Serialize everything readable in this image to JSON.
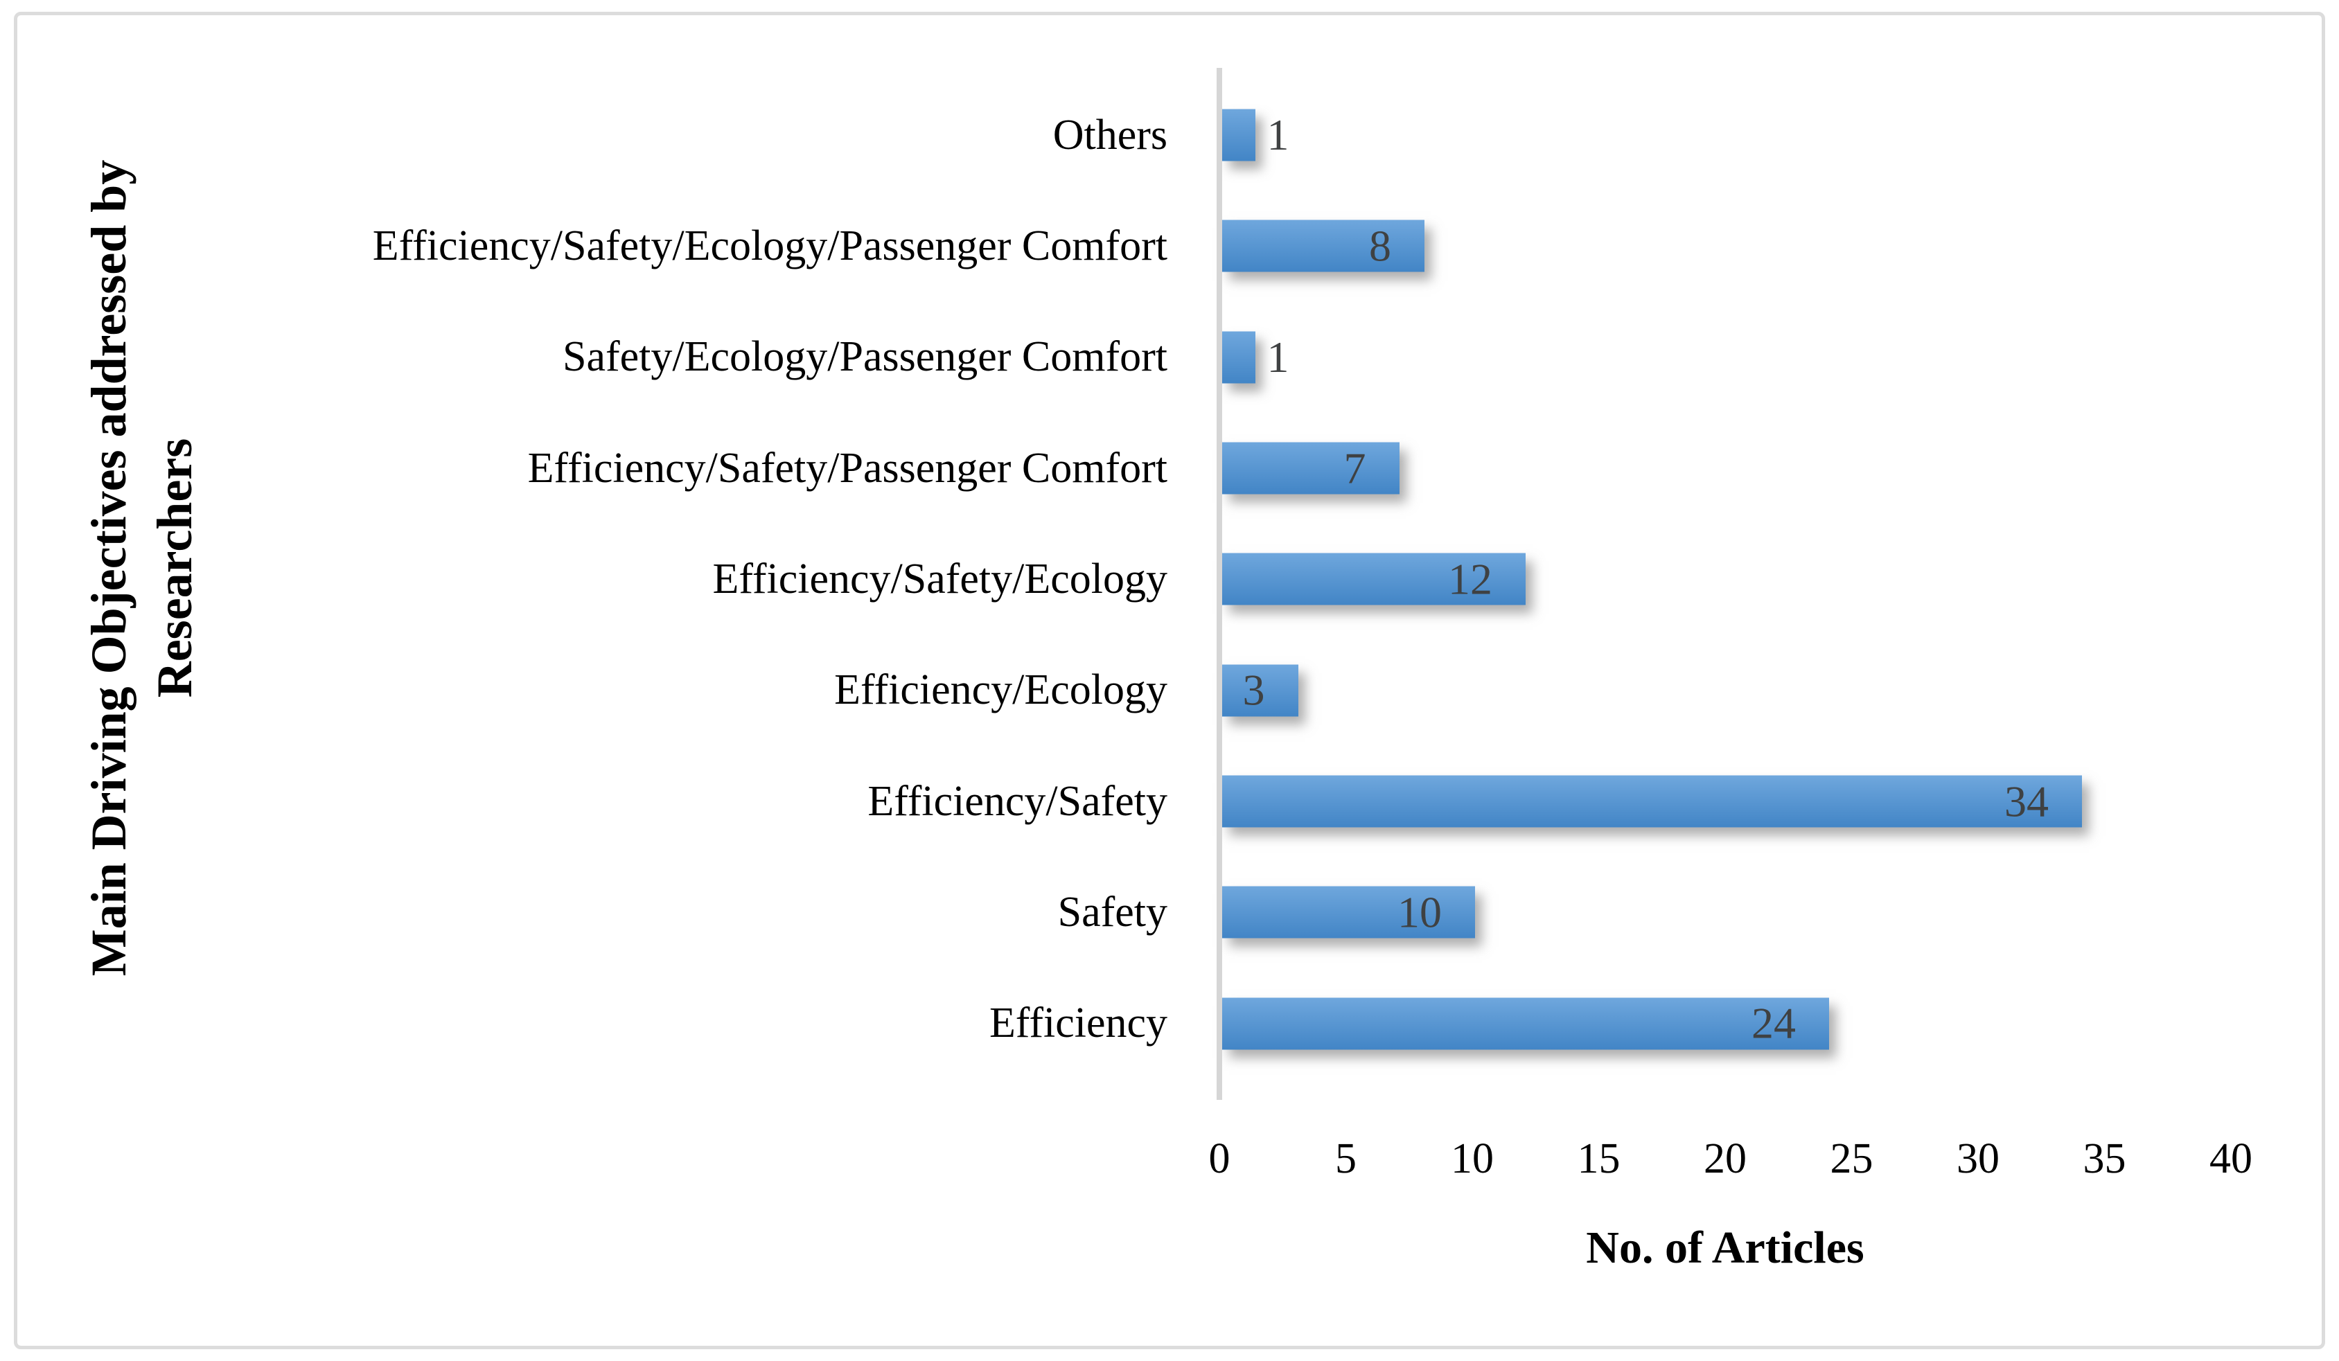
{
  "figure": {
    "frame_border_color": "#DCDCDC",
    "background_color": "#FFFFFF"
  },
  "chart_data": {
    "type": "bar",
    "orientation": "horizontal",
    "title": "",
    "xlabel": "No. of Articles",
    "ylabel": "Main Driving Objectives addressed by Researchers",
    "ylabel_lines": [
      "Main Driving Objectives addressed by",
      "Researchers"
    ],
    "categories": [
      "Others",
      "Efficiency/Safety/Ecology/Passenger Comfort",
      "Safety/Ecology/Passenger Comfort",
      "Efficiency/Safety/Passenger Comfort",
      "Efficiency/Safety/Ecology",
      "Efficiency/Ecology",
      "Efficiency/Safety",
      "Safety",
      "Efficiency"
    ],
    "values": [
      1,
      8,
      1,
      7,
      12,
      3,
      34,
      10,
      24
    ],
    "xlim": [
      0,
      40
    ],
    "xticks": [
      0,
      5,
      10,
      15,
      20,
      25,
      30,
      35,
      40
    ],
    "grid": false,
    "legend": false,
    "bar_color_top": "#6FA7DD",
    "bar_color_bottom": "#4285C6",
    "axis_line_color": "#D6D6D6",
    "value_label_color": "#3F4142",
    "value_label_inside_min": 3
  }
}
